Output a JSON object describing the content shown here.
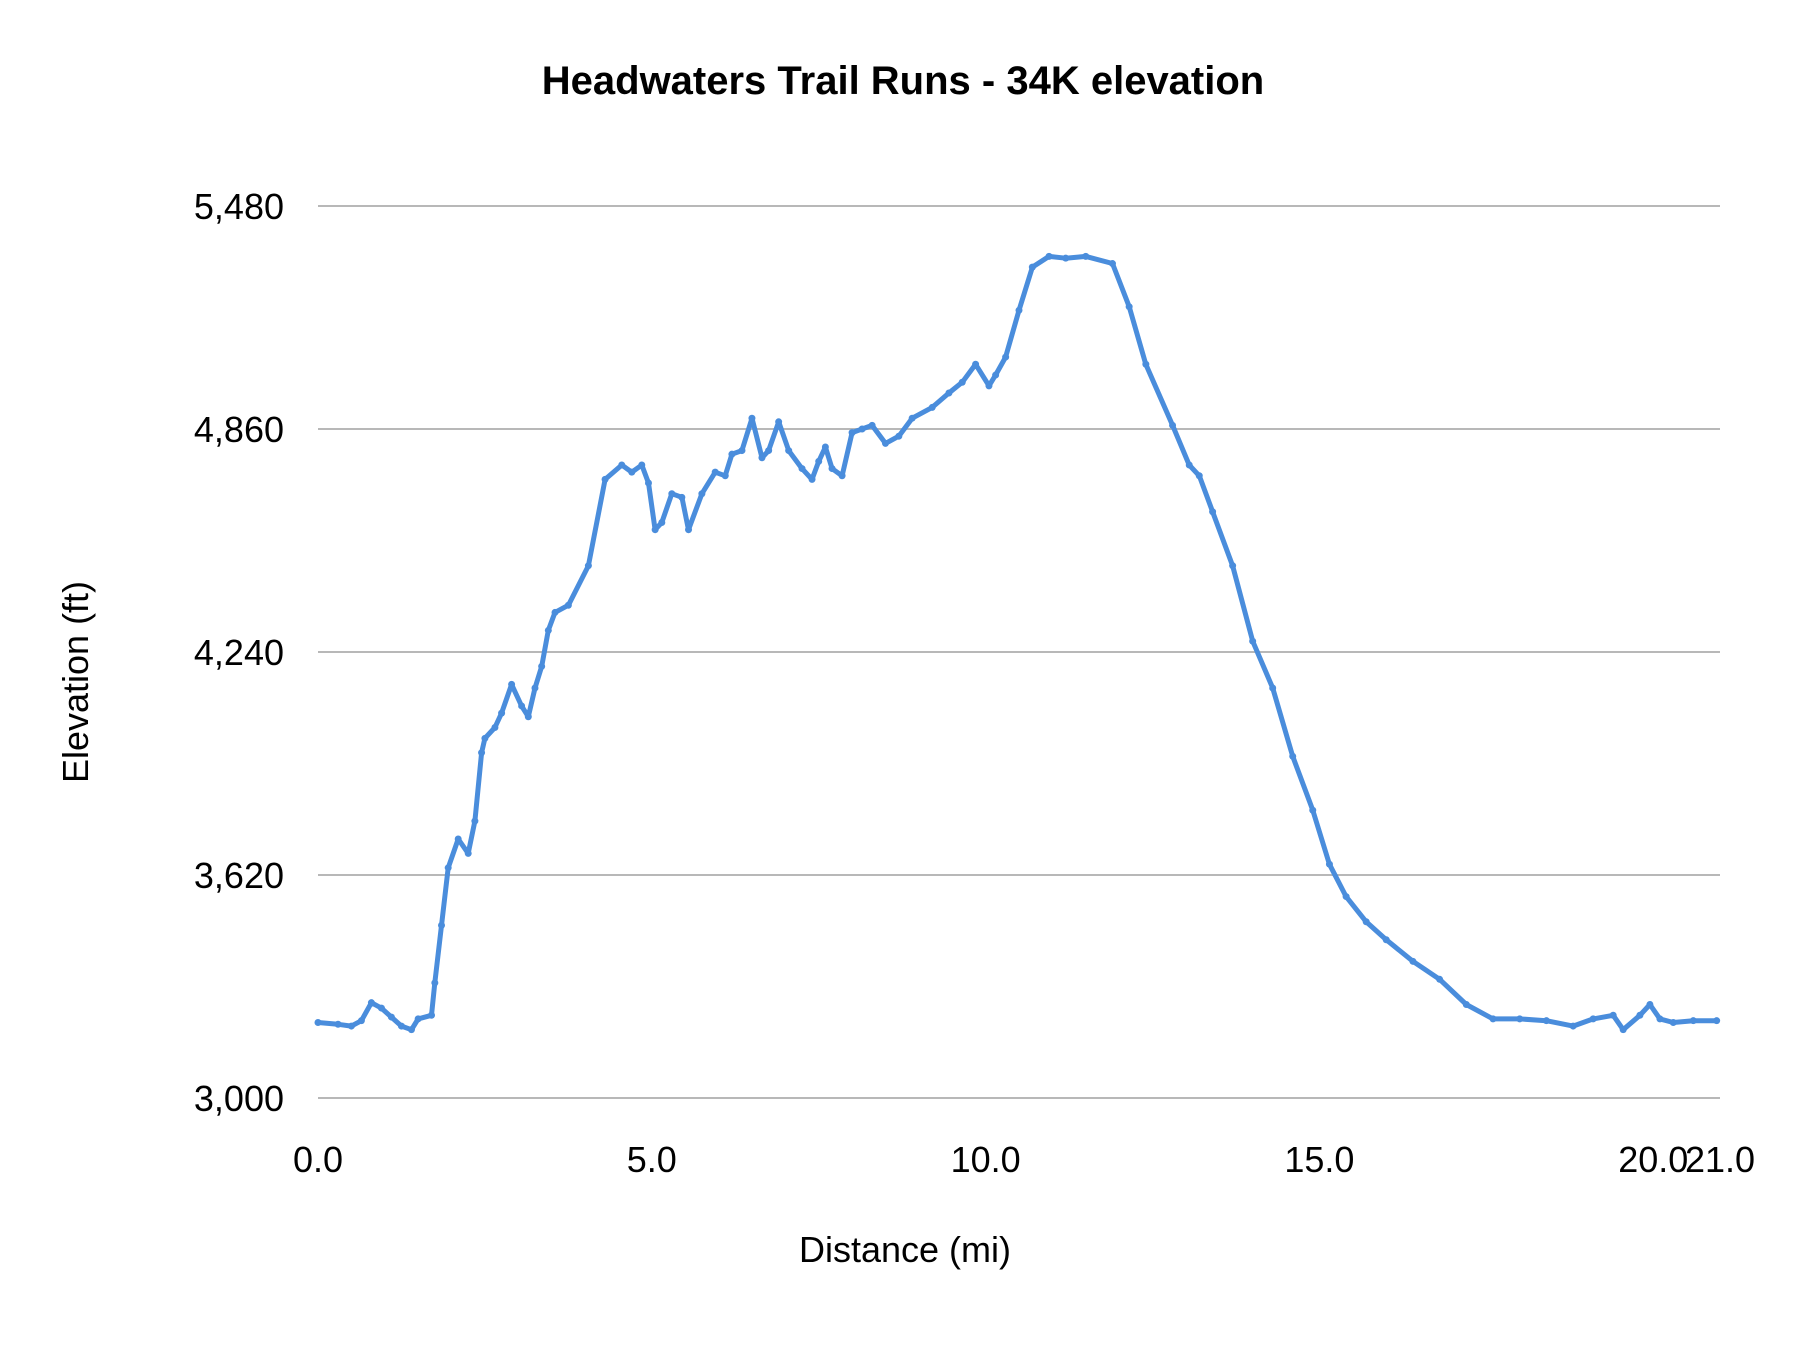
{
  "chart_data": {
    "type": "line",
    "title": "Headwaters Trail Runs - 34K elevation",
    "xlabel": "Distance (mi)",
    "ylabel": "Elevation (ft)",
    "xlim": [
      0,
      21
    ],
    "ylim": [
      3000,
      5480
    ],
    "x_ticks": [
      0,
      5,
      10,
      15,
      20,
      21
    ],
    "x_tick_labels": [
      "0.0",
      "5.0",
      "10.0",
      "15.0",
      "20.0",
      "21.0"
    ],
    "y_ticks": [
      3000,
      3620,
      4240,
      4860,
      5480
    ],
    "y_tick_labels": [
      "3,000",
      "3,620",
      "4,240",
      "4,860",
      "5,480"
    ],
    "grid": "horizontal",
    "legend": "none",
    "colors": {
      "line": "#4a8ddc",
      "grid": "#b8b8b8"
    },
    "series": [
      {
        "x": [
          0.0,
          0.3,
          0.5,
          0.65,
          0.8,
          0.95,
          1.1,
          1.25,
          1.4,
          1.5,
          1.7,
          1.75,
          1.85,
          1.95,
          2.1,
          2.25,
          2.35,
          2.45,
          2.5,
          2.65,
          2.75,
          2.9,
          3.05,
          3.15,
          3.25,
          3.35,
          3.45,
          3.55,
          3.75,
          4.05,
          4.3,
          4.55,
          4.7,
          4.85,
          4.95,
          5.05,
          5.15,
          5.3,
          5.45,
          5.55,
          5.75,
          5.95,
          6.1,
          6.2,
          6.35,
          6.5,
          6.65,
          6.75,
          6.9,
          7.05,
          7.25,
          7.4,
          7.5,
          7.6,
          7.7,
          7.85,
          8.0,
          8.15,
          8.3,
          8.5,
          8.7,
          8.9,
          9.2,
          9.45,
          9.65,
          9.85,
          10.05,
          10.15,
          10.3,
          10.5,
          10.7,
          10.95,
          11.2,
          11.5,
          11.9,
          12.15,
          12.4,
          12.8,
          13.05,
          13.2,
          13.4,
          13.7,
          14.0,
          14.3,
          14.6,
          14.9,
          15.15,
          15.4,
          15.7,
          16.0,
          16.4,
          16.8,
          17.2,
          17.6,
          18.0,
          18.4,
          18.8,
          19.1,
          19.4,
          19.55,
          19.8,
          19.95,
          20.1,
          20.3,
          20.6,
          20.95
        ],
        "y": [
          3210,
          3205,
          3200,
          3215,
          3265,
          3250,
          3225,
          3200,
          3190,
          3220,
          3230,
          3320,
          3480,
          3640,
          3720,
          3680,
          3770,
          3960,
          4000,
          4030,
          4070,
          4150,
          4090,
          4060,
          4140,
          4200,
          4300,
          4350,
          4370,
          4480,
          4720,
          4760,
          4740,
          4760,
          4710,
          4580,
          4600,
          4680,
          4670,
          4580,
          4680,
          4740,
          4730,
          4790,
          4800,
          4890,
          4780,
          4800,
          4880,
          4800,
          4750,
          4720,
          4770,
          4810,
          4750,
          4730,
          4850,
          4860,
          4870,
          4820,
          4840,
          4890,
          4920,
          4960,
          4990,
          5040,
          4980,
          5010,
          5060,
          5190,
          5310,
          5340,
          5335,
          5340,
          5320,
          5200,
          5040,
          4870,
          4760,
          4730,
          4630,
          4480,
          4270,
          4140,
          3950,
          3800,
          3650,
          3560,
          3490,
          3440,
          3380,
          3330,
          3260,
          3220,
          3220,
          3215,
          3200,
          3220,
          3230,
          3190,
          3230,
          3260,
          3220,
          3210,
          3215,
          3215
        ]
      }
    ]
  }
}
